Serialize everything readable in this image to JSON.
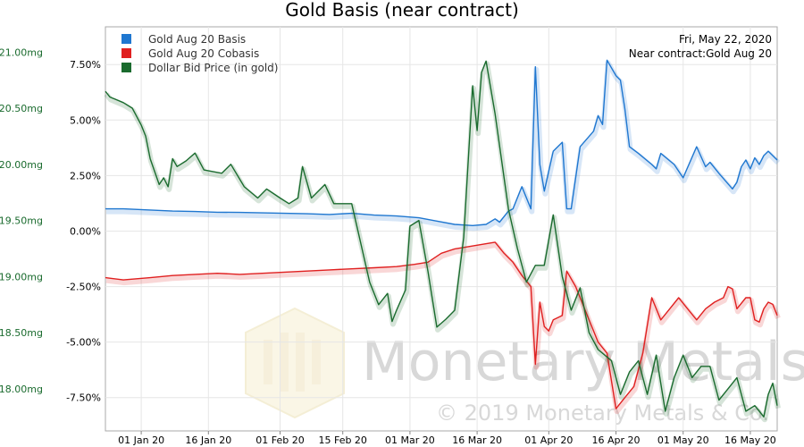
{
  "chart_data": {
    "type": "line",
    "title": "Gold Basis (near contract)",
    "info": {
      "date": "Fri, May 22, 2020",
      "contract": "Near contract:Gold Aug 20"
    },
    "watermark": {
      "brand": "Monetary Metals",
      "copyright": "© 2019 Monetary Metals & Co."
    },
    "legend_placement": "top-left",
    "grid": true,
    "x_ticks": [
      "01 Jan 20",
      "16 Jan 20",
      "01 Feb 20",
      "15 Feb 20",
      "01 Mar 20",
      "16 Mar 20",
      "01 Apr 20",
      "16 Apr 20",
      "01 May 20",
      "16 May 20"
    ],
    "x_tick_dates": [
      "2020-01-01",
      "2020-01-16",
      "2020-02-01",
      "2020-02-15",
      "2020-03-01",
      "2020-03-16",
      "2020-04-01",
      "2020-04-16",
      "2020-05-01",
      "2020-05-16"
    ],
    "xlim": [
      "2019-12-24",
      "2020-05-22"
    ],
    "y_left_ticks": [
      "21.00mg",
      "20.50mg",
      "20.00mg",
      "19.50mg",
      "19.00mg",
      "18.50mg",
      "18.00mg"
    ],
    "y_left_ticks_values": [
      21.0,
      20.5,
      20.0,
      19.5,
      19.0,
      18.5,
      18.0
    ],
    "ylim_left": [
      17.625,
      21.225
    ],
    "y_pct_ticks": [
      "7.50%",
      "5.00%",
      "2.50%",
      "0.00%",
      "-2.50%",
      "-5.00%",
      "-7.50%"
    ],
    "y_pct_values": [
      7.5,
      5.0,
      2.5,
      0.0,
      -2.5,
      -5.0,
      -7.5
    ],
    "ylim_pct": [
      -9.0,
      9.2
    ],
    "series": [
      {
        "name": "Gold Aug 20 Basis",
        "color": "#1f77d0",
        "axis": "pct",
        "points": [
          [
            "2019-12-24",
            1.0
          ],
          [
            "2019-12-28",
            1.0
          ],
          [
            "2020-01-03",
            0.95
          ],
          [
            "2020-01-08",
            0.9
          ],
          [
            "2020-01-13",
            0.88
          ],
          [
            "2020-01-18",
            0.85
          ],
          [
            "2020-01-23",
            0.84
          ],
          [
            "2020-01-28",
            0.82
          ],
          [
            "2020-02-02",
            0.8
          ],
          [
            "2020-02-07",
            0.78
          ],
          [
            "2020-02-12",
            0.75
          ],
          [
            "2020-02-17",
            0.8
          ],
          [
            "2020-02-22",
            0.72
          ],
          [
            "2020-02-27",
            0.68
          ],
          [
            "2020-03-03",
            0.6
          ],
          [
            "2020-03-07",
            0.45
          ],
          [
            "2020-03-11",
            0.3
          ],
          [
            "2020-03-15",
            0.25
          ],
          [
            "2020-03-18",
            0.3
          ],
          [
            "2020-03-20",
            0.55
          ],
          [
            "2020-03-21",
            0.4
          ],
          [
            "2020-03-23",
            0.9
          ],
          [
            "2020-03-24",
            1.0
          ],
          [
            "2020-03-26",
            2.0
          ],
          [
            "2020-03-28",
            1.0
          ],
          [
            "2020-03-29",
            7.4
          ],
          [
            "2020-03-30",
            3.0
          ],
          [
            "2020-03-31",
            1.8
          ],
          [
            "2020-04-02",
            3.6
          ],
          [
            "2020-04-04",
            4.0
          ],
          [
            "2020-04-05",
            1.0
          ],
          [
            "2020-04-06",
            1.0
          ],
          [
            "2020-04-08",
            3.8
          ],
          [
            "2020-04-11",
            4.5
          ],
          [
            "2020-04-12",
            5.2
          ],
          [
            "2020-04-13",
            4.8
          ],
          [
            "2020-04-14",
            7.7
          ],
          [
            "2020-04-16",
            7.0
          ],
          [
            "2020-04-17",
            6.8
          ],
          [
            "2020-04-18",
            5.5
          ],
          [
            "2020-04-19",
            3.8
          ],
          [
            "2020-04-21",
            3.5
          ],
          [
            "2020-04-24",
            3.0
          ],
          [
            "2020-04-25",
            2.8
          ],
          [
            "2020-04-26",
            3.5
          ],
          [
            "2020-04-29",
            3.0
          ],
          [
            "2020-05-01",
            2.4
          ],
          [
            "2020-05-04",
            3.8
          ],
          [
            "2020-05-06",
            2.9
          ],
          [
            "2020-05-07",
            3.1
          ],
          [
            "2020-05-09",
            2.6
          ],
          [
            "2020-05-12",
            1.9
          ],
          [
            "2020-05-13",
            2.2
          ],
          [
            "2020-05-14",
            2.9
          ],
          [
            "2020-05-15",
            3.2
          ],
          [
            "2020-05-16",
            2.8
          ],
          [
            "2020-05-17",
            3.3
          ],
          [
            "2020-05-18",
            3.0
          ],
          [
            "2020-05-19",
            3.4
          ],
          [
            "2020-05-20",
            3.6
          ],
          [
            "2020-05-22",
            3.2
          ]
        ]
      },
      {
        "name": "Gold Aug 20 Cobasis",
        "color": "#e02020",
        "axis": "pct",
        "points": [
          [
            "2019-12-24",
            -2.1
          ],
          [
            "2019-12-28",
            -2.2
          ],
          [
            "2020-01-03",
            -2.1
          ],
          [
            "2020-01-08",
            -2.0
          ],
          [
            "2020-01-13",
            -1.95
          ],
          [
            "2020-01-18",
            -1.9
          ],
          [
            "2020-01-23",
            -1.95
          ],
          [
            "2020-01-28",
            -1.9
          ],
          [
            "2020-02-02",
            -1.85
          ],
          [
            "2020-02-07",
            -1.8
          ],
          [
            "2020-02-12",
            -1.75
          ],
          [
            "2020-02-17",
            -1.7
          ],
          [
            "2020-02-22",
            -1.65
          ],
          [
            "2020-02-27",
            -1.6
          ],
          [
            "2020-03-02",
            -1.5
          ],
          [
            "2020-03-05",
            -1.4
          ],
          [
            "2020-03-08",
            -1.0
          ],
          [
            "2020-03-11",
            -0.8
          ],
          [
            "2020-03-14",
            -0.7
          ],
          [
            "2020-03-17",
            -0.6
          ],
          [
            "2020-03-20",
            -0.5
          ],
          [
            "2020-03-22",
            -1.0
          ],
          [
            "2020-03-24",
            -1.4
          ],
          [
            "2020-03-26",
            -2.0
          ],
          [
            "2020-03-28",
            -2.5
          ],
          [
            "2020-03-29",
            -6.0
          ],
          [
            "2020-03-30",
            -3.2
          ],
          [
            "2020-03-31",
            -4.3
          ],
          [
            "2020-04-01",
            -4.5
          ],
          [
            "2020-04-02",
            -4.0
          ],
          [
            "2020-04-04",
            -3.8
          ],
          [
            "2020-04-05",
            -1.8
          ],
          [
            "2020-04-07",
            -2.5
          ],
          [
            "2020-04-09",
            -3.5
          ],
          [
            "2020-04-12",
            -5.0
          ],
          [
            "2020-04-14",
            -5.5
          ],
          [
            "2020-04-16",
            -8.0
          ],
          [
            "2020-04-18",
            -7.5
          ],
          [
            "2020-04-20",
            -7.0
          ],
          [
            "2020-04-22",
            -5.5
          ],
          [
            "2020-04-24",
            -3.0
          ],
          [
            "2020-04-26",
            -4.0
          ],
          [
            "2020-04-28",
            -3.5
          ],
          [
            "2020-04-30",
            -3.0
          ],
          [
            "2020-05-02",
            -3.5
          ],
          [
            "2020-05-04",
            -4.0
          ],
          [
            "2020-05-06",
            -3.5
          ],
          [
            "2020-05-08",
            -3.2
          ],
          [
            "2020-05-10",
            -3.0
          ],
          [
            "2020-05-11",
            -2.5
          ],
          [
            "2020-05-12",
            -2.6
          ],
          [
            "2020-05-13",
            -3.5
          ],
          [
            "2020-05-15",
            -3.0
          ],
          [
            "2020-05-16",
            -3.0
          ],
          [
            "2020-05-17",
            -4.0
          ],
          [
            "2020-05-18",
            -4.1
          ],
          [
            "2020-05-19",
            -3.5
          ],
          [
            "2020-05-20",
            -3.2
          ],
          [
            "2020-05-21",
            -3.3
          ],
          [
            "2020-05-22",
            -3.8
          ]
        ]
      },
      {
        "name": "Dollar Bid Price (in gold)",
        "color": "#1a6b2e",
        "axis": "mg",
        "points": [
          [
            "2019-12-24",
            20.65
          ],
          [
            "2019-12-25",
            20.6
          ],
          [
            "2019-12-28",
            20.55
          ],
          [
            "2019-12-30",
            20.5
          ],
          [
            "2020-01-01",
            20.35
          ],
          [
            "2020-01-02",
            20.25
          ],
          [
            "2020-01-03",
            20.05
          ],
          [
            "2020-01-05",
            19.82
          ],
          [
            "2020-01-06",
            19.88
          ],
          [
            "2020-01-07",
            19.8
          ],
          [
            "2020-01-08",
            20.05
          ],
          [
            "2020-01-09",
            19.98
          ],
          [
            "2020-01-11",
            20.03
          ],
          [
            "2020-01-13",
            20.1
          ],
          [
            "2020-01-15",
            19.95
          ],
          [
            "2020-01-19",
            19.92
          ],
          [
            "2020-01-21",
            20.0
          ],
          [
            "2020-01-24",
            19.8
          ],
          [
            "2020-01-27",
            19.7
          ],
          [
            "2020-01-29",
            19.78
          ],
          [
            "2020-02-01",
            19.7
          ],
          [
            "2020-02-03",
            19.65
          ],
          [
            "2020-02-05",
            19.7
          ],
          [
            "2020-02-06",
            19.98
          ],
          [
            "2020-02-08",
            19.7
          ],
          [
            "2020-02-11",
            19.82
          ],
          [
            "2020-02-13",
            19.65
          ],
          [
            "2020-02-17",
            19.65
          ],
          [
            "2020-02-21",
            18.95
          ],
          [
            "2020-02-23",
            18.75
          ],
          [
            "2020-02-25",
            18.85
          ],
          [
            "2020-02-26",
            18.6
          ],
          [
            "2020-02-27",
            18.7
          ],
          [
            "2020-02-29",
            18.88
          ],
          [
            "2020-03-01",
            19.45
          ],
          [
            "2020-03-03",
            19.5
          ],
          [
            "2020-03-05",
            19.05
          ],
          [
            "2020-03-07",
            18.55
          ],
          [
            "2020-03-09",
            18.62
          ],
          [
            "2020-03-11",
            18.7
          ],
          [
            "2020-03-13",
            19.35
          ],
          [
            "2020-03-15",
            20.7
          ],
          [
            "2020-03-16",
            20.3
          ],
          [
            "2020-03-17",
            20.82
          ],
          [
            "2020-03-18",
            20.92
          ],
          [
            "2020-03-20",
            20.45
          ],
          [
            "2020-03-23",
            19.6
          ],
          [
            "2020-03-25",
            19.25
          ],
          [
            "2020-03-27",
            18.95
          ],
          [
            "2020-03-29",
            19.1
          ],
          [
            "2020-03-31",
            19.1
          ],
          [
            "2020-04-02",
            19.55
          ],
          [
            "2020-04-04",
            19.0
          ],
          [
            "2020-04-06",
            18.7
          ],
          [
            "2020-04-08",
            18.9
          ],
          [
            "2020-04-10",
            18.5
          ],
          [
            "2020-04-12",
            18.35
          ],
          [
            "2020-04-15",
            18.25
          ],
          [
            "2020-04-17",
            17.95
          ],
          [
            "2020-04-19",
            18.15
          ],
          [
            "2020-04-21",
            18.25
          ],
          [
            "2020-04-23",
            17.95
          ],
          [
            "2020-04-25",
            18.3
          ],
          [
            "2020-04-27",
            17.8
          ],
          [
            "2020-04-29",
            18.1
          ],
          [
            "2020-05-01",
            18.3
          ],
          [
            "2020-05-03",
            18.1
          ],
          [
            "2020-05-05",
            18.2
          ],
          [
            "2020-05-07",
            18.2
          ],
          [
            "2020-05-09",
            17.9
          ],
          [
            "2020-05-11",
            18.0
          ],
          [
            "2020-05-13",
            18.1
          ],
          [
            "2020-05-15",
            17.8
          ],
          [
            "2020-05-17",
            17.85
          ],
          [
            "2020-05-19",
            17.75
          ],
          [
            "2020-05-20",
            17.95
          ],
          [
            "2020-05-21",
            18.05
          ],
          [
            "2020-05-22",
            17.85
          ]
        ]
      }
    ]
  }
}
